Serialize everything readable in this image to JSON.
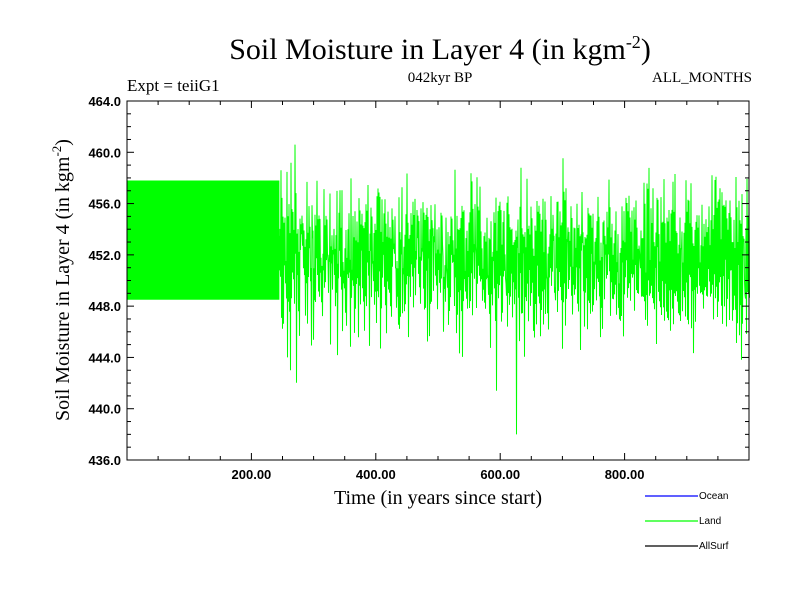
{
  "chart_data": {
    "type": "line",
    "title": "Soil Moisture in Layer 4 (in kgm",
    "title_superscript": "-2",
    "title_suffix": ")",
    "subtitle_left": "Expt = teiiG1",
    "subtitle_center": "042kyr BP",
    "subtitle_right": "ALL_MONTHS",
    "xlabel": "Time (in years since start)",
    "ylabel": "Soil Moisture in Layer 4 (in kgm",
    "ylabel_superscript": "-2",
    "ylabel_suffix": ")",
    "xlim": [
      0,
      1000
    ],
    "ylim": [
      436.0,
      464.0
    ],
    "x_ticks": [
      200,
      400,
      600,
      800
    ],
    "x_tick_labels": [
      "200.00",
      "400.00",
      "600.00",
      "800.00"
    ],
    "y_ticks": [
      436,
      440,
      444,
      448,
      452,
      456,
      460,
      464
    ],
    "y_tick_labels": [
      "436.0",
      "440.0",
      "444.0",
      "448.0",
      "452.0",
      "456.0",
      "460.0",
      "464.0"
    ],
    "grid": false,
    "legend_position": "bottom-right outside plot",
    "series": [
      {
        "name": "Ocean",
        "color": "#0000ff",
        "values": []
      },
      {
        "name": "Land",
        "color": "#00ff00",
        "segments": [
          {
            "x_range": [
              0,
              245
            ],
            "min": 448.5,
            "max": 457.8,
            "note_type": "constant seasonal cycle"
          },
          {
            "x_range": [
              245,
              1000
            ],
            "mean": 451.7,
            "min": 438.0,
            "max": 460.6
          }
        ],
        "extremes": [
          {
            "x": 625,
            "y": 438.0
          },
          {
            "x": 270,
            "y": 460.6
          },
          {
            "x": 594,
            "y": 441.4
          },
          {
            "x": 262,
            "y": 443.0
          }
        ]
      },
      {
        "name": "AllSurf",
        "color": "#000000",
        "values": []
      }
    ]
  }
}
